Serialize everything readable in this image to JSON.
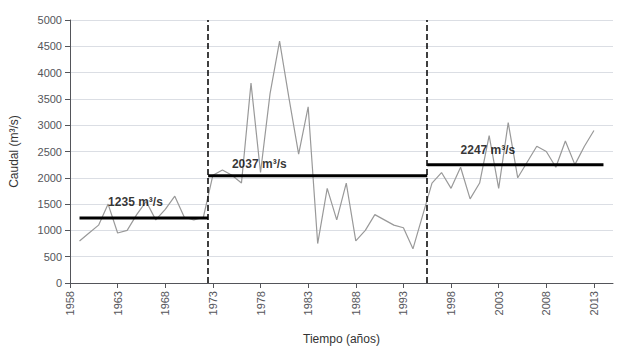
{
  "chart_data": {
    "type": "line",
    "xlabel": "Tiempo (años)",
    "ylabel": "Caudal (m³/s)",
    "x": [
      1959,
      1960,
      1961,
      1962,
      1963,
      1964,
      1965,
      1966,
      1967,
      1968,
      1969,
      1970,
      1971,
      1972,
      1973,
      1974,
      1975,
      1976,
      1977,
      1978,
      1979,
      1980,
      1981,
      1982,
      1983,
      1984,
      1985,
      1986,
      1987,
      1988,
      1989,
      1990,
      1991,
      1992,
      1993,
      1994,
      1996,
      1997,
      1998,
      1999,
      2000,
      2001,
      2002,
      2003,
      2004,
      2005,
      2006,
      2007,
      2008,
      2009,
      2010,
      2011,
      2012,
      2013
    ],
    "values": [
      800,
      950,
      1100,
      1500,
      950,
      1000,
      1300,
      1550,
      1200,
      1400,
      1650,
      1250,
      1200,
      1250,
      2050,
      2150,
      2050,
      1900,
      3800,
      2100,
      3600,
      4600,
      3500,
      2450,
      3350,
      750,
      1800,
      1200,
      1900,
      800,
      1000,
      1300,
      1200,
      1100,
      1050,
      650,
      1900,
      2100,
      1800,
      2200,
      1600,
      1900,
      2800,
      1800,
      3050,
      2000,
      2300,
      2600,
      2500,
      2200,
      2700,
      2250,
      2600,
      2900
    ],
    "color": "#999999",
    "vlines": [
      {
        "x": 1972.5,
        "color": "#000000",
        "line_style": "dashed"
      },
      {
        "x": 1995.5,
        "color": "#000000",
        "line_style": "dashed"
      }
    ],
    "mean_lines": [
      {
        "x": [
          1959,
          1972.5
        ],
        "y": 1235,
        "color": "#000000"
      },
      {
        "x": [
          1972.5,
          1995.5
        ],
        "y": 2037,
        "color": "#000000"
      },
      {
        "x": [
          1995.5,
          2014
        ],
        "y": 2247,
        "color": "#000000"
      }
    ],
    "annotations": [
      {
        "text": "1235 m³/s",
        "x": 1962,
        "y": 1420
      },
      {
        "text": "2037 m³/s",
        "x": 1975,
        "y": 2150
      },
      {
        "text": "2247 m³/s",
        "x": 1999,
        "y": 2420
      }
    ],
    "xlim": [
      1958,
      2015
    ],
    "ylim": [
      0,
      5000
    ],
    "xticks": [
      1958,
      1963,
      1968,
      1973,
      1978,
      1983,
      1988,
      1993,
      1998,
      2003,
      2008,
      2013
    ],
    "yticks": [
      0,
      500,
      1000,
      1500,
      2000,
      2500,
      3000,
      3500,
      4000,
      4500,
      5000
    ],
    "grid": true
  }
}
